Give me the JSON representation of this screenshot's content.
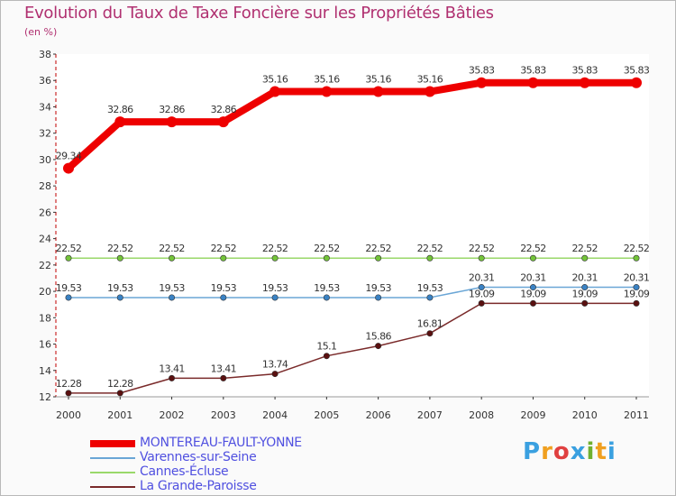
{
  "title": "Evolution du Taux de Taxe Foncière sur les Propriétés Bâties",
  "unit": "(en %)",
  "logo": {
    "text": "Proxiti",
    "colors": [
      "#3aa0e0",
      "#f0a020",
      "#e04040",
      "#3aa0e0",
      "#70b030",
      "#f0a020",
      "#3aa0e0"
    ]
  },
  "chart_data": {
    "type": "line",
    "title": "Evolution du Taux de Taxe Foncière sur les Propriétés Bâties",
    "ylabel": "(en %)",
    "xlabel": "",
    "ylim": [
      12,
      38
    ],
    "yticks": [
      12,
      14,
      16,
      18,
      20,
      22,
      24,
      26,
      28,
      30,
      32,
      34,
      36,
      38
    ],
    "categories": [
      "2000",
      "2001",
      "2002",
      "2003",
      "2004",
      "2005",
      "2006",
      "2007",
      "2008",
      "2009",
      "2010",
      "2011"
    ],
    "series": [
      {
        "name": "MONTEREAU-FAULT-YONNE",
        "color": "#ee0000",
        "marker": "#ee0000",
        "values": [
          29.34,
          32.86,
          32.86,
          32.86,
          35.16,
          35.16,
          35.16,
          35.16,
          35.83,
          35.83,
          35.83,
          35.83
        ],
        "labels": [
          "29.34",
          "32.86",
          "32.86",
          "32.86",
          "35.16",
          "35.16",
          "35.16",
          "35.16",
          "35.83",
          "35.83",
          "35.83",
          "35.83"
        ]
      },
      {
        "name": "Varennes-sur-Seine",
        "color": "#6aa6d6",
        "marker": "#3a82c4",
        "values": [
          19.53,
          19.53,
          19.53,
          19.53,
          19.53,
          19.53,
          19.53,
          19.53,
          20.31,
          20.31,
          20.31,
          20.31
        ],
        "labels": [
          "19.53",
          "19.53",
          "19.53",
          "19.53",
          "19.53",
          "19.53",
          "19.53",
          "19.53",
          "20.31",
          "20.31",
          "20.31",
          "20.31"
        ]
      },
      {
        "name": "Cannes-Écluse",
        "color": "#9ad86a",
        "marker": "#74c43a",
        "values": [
          22.52,
          22.52,
          22.52,
          22.52,
          22.52,
          22.52,
          22.52,
          22.52,
          22.52,
          22.52,
          22.52,
          22.52
        ],
        "labels": [
          "22.52",
          "22.52",
          "22.52",
          "22.52",
          "22.52",
          "22.52",
          "22.52",
          "22.52",
          "22.52",
          "22.52",
          "22.52",
          "22.52"
        ]
      },
      {
        "name": "La Grande-Paroisse",
        "color": "#7a2a2a",
        "marker": "#5a1010",
        "values": [
          12.28,
          12.28,
          13.41,
          13.41,
          13.74,
          15.1,
          15.86,
          16.81,
          19.09,
          19.09,
          19.09,
          19.09
        ],
        "labels": [
          "12.28",
          "12.28",
          "13.41",
          "13.41",
          "13.74",
          "15.1",
          "15.86",
          "16.81",
          "19.09",
          "19.09",
          "19.09",
          "19.09"
        ]
      }
    ]
  }
}
